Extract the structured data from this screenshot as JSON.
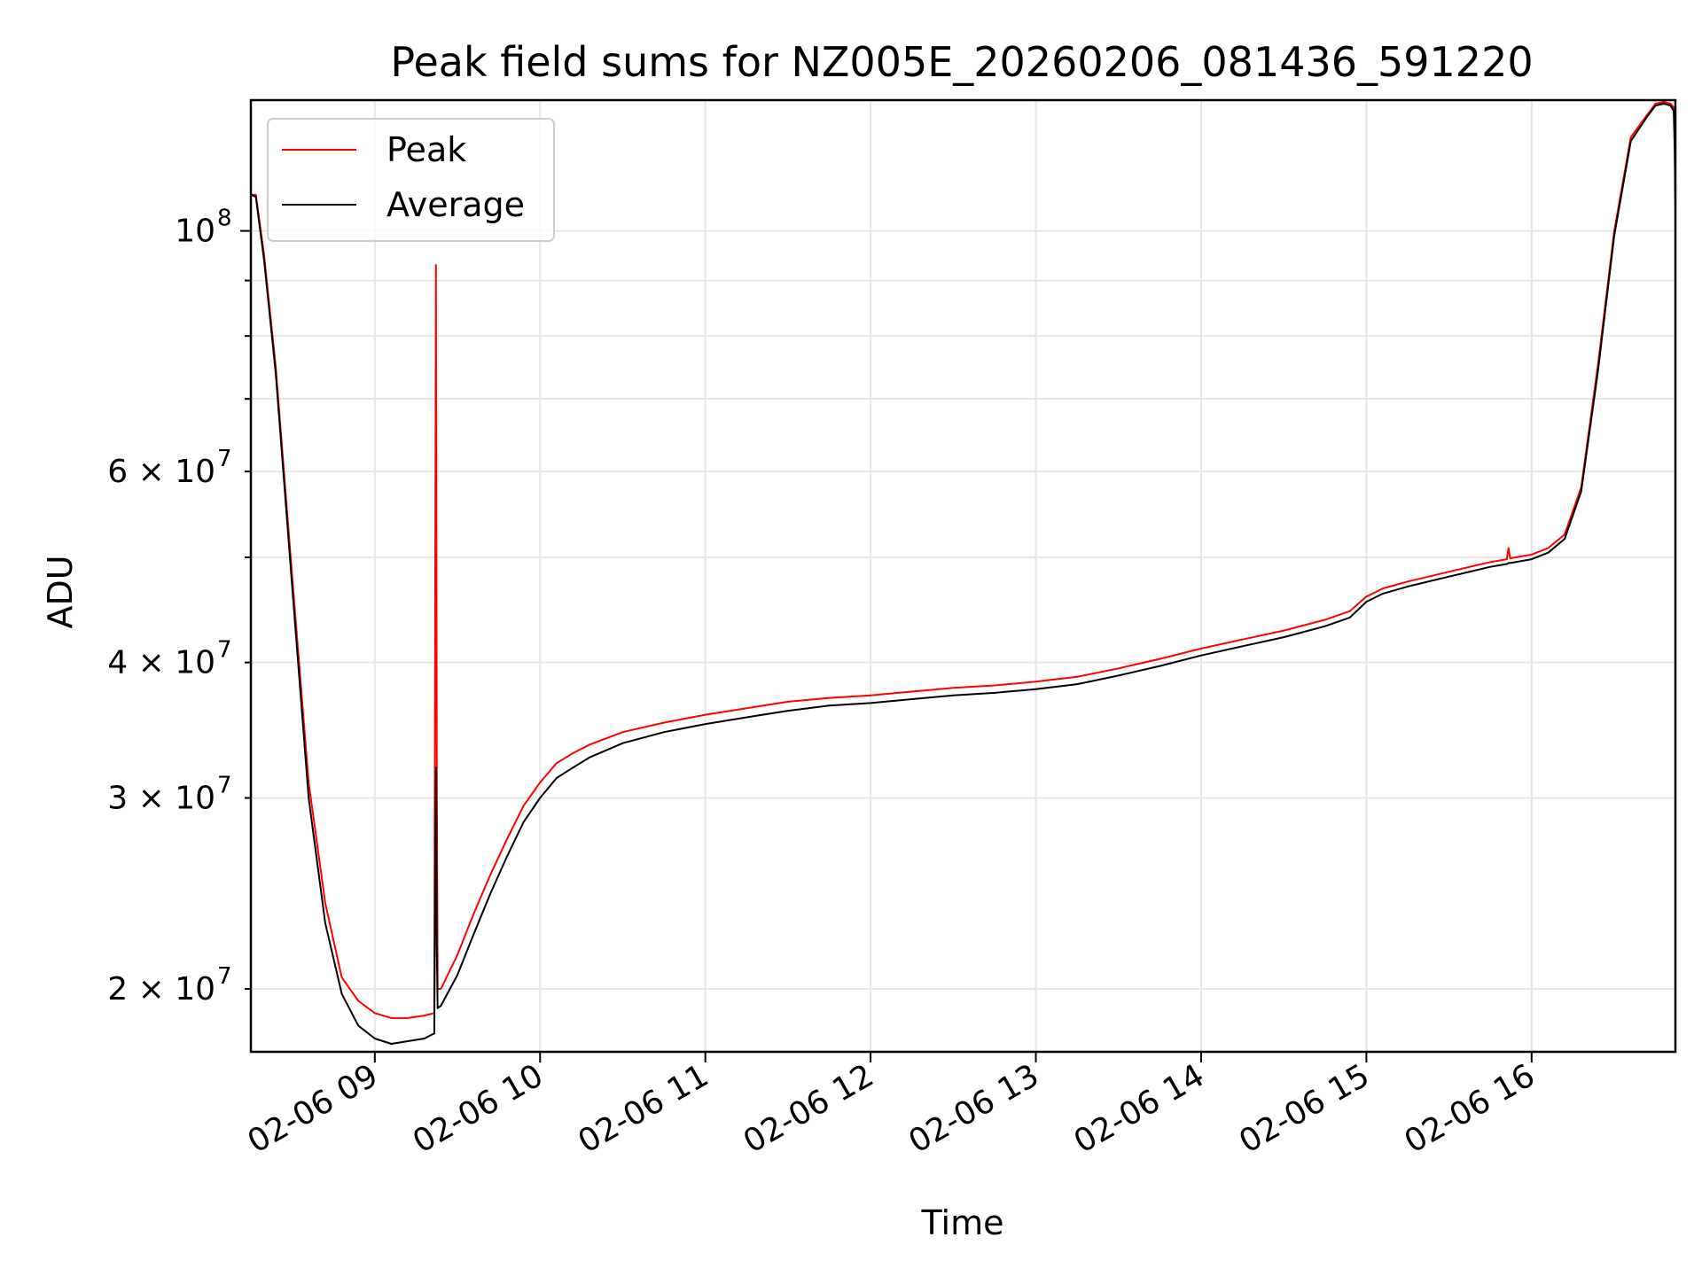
{
  "chart_data": {
    "type": "line",
    "title": "Peak field sums for NZ005E_20260206_081436_591220",
    "xlabel": "Time",
    "ylabel": "ADU",
    "yscale": "log",
    "grid": true,
    "legend_position": "top-left",
    "x_unit": "hour of day (2026-02-06)",
    "xlim": [
      8.25,
      16.87
    ],
    "ylim": [
      17500000,
      132000000
    ],
    "x_ticks": [
      {
        "value": 9,
        "label": "02-06 09"
      },
      {
        "value": 10,
        "label": "02-06 10"
      },
      {
        "value": 11,
        "label": "02-06 11"
      },
      {
        "value": 12,
        "label": "02-06 12"
      },
      {
        "value": 13,
        "label": "02-06 13"
      },
      {
        "value": 14,
        "label": "02-06 14"
      },
      {
        "value": 15,
        "label": "02-06 15"
      },
      {
        "value": 16,
        "label": "02-06 16"
      }
    ],
    "y_ticks_major": [
      {
        "value": 100000000,
        "mant": "",
        "base": "10",
        "exp": "8"
      }
    ],
    "y_ticks_minor_labeled": [
      {
        "value": 20000000,
        "mant": "2 × ",
        "base": "10",
        "exp": "7"
      },
      {
        "value": 30000000,
        "mant": "3 × ",
        "base": "10",
        "exp": "7"
      },
      {
        "value": 40000000,
        "mant": "4 × ",
        "base": "10",
        "exp": "7"
      },
      {
        "value": 60000000,
        "mant": "6 × ",
        "base": "10",
        "exp": "7"
      }
    ],
    "y_ticks_minor_unlabeled": [
      50000000,
      70000000,
      80000000,
      90000000
    ],
    "series": [
      {
        "name": "Peak",
        "color": "#ff0000",
        "x": [
          8.25,
          8.28,
          8.33,
          8.4,
          8.5,
          8.6,
          8.7,
          8.8,
          8.9,
          9.0,
          9.1,
          9.2,
          9.3,
          9.36,
          9.37,
          9.375,
          9.38,
          9.4,
          9.5,
          9.6,
          9.7,
          9.8,
          9.9,
          10.0,
          10.1,
          10.2,
          10.3,
          10.5,
          10.75,
          11.0,
          11.25,
          11.5,
          11.75,
          12.0,
          12.25,
          12.5,
          12.75,
          13.0,
          13.25,
          13.5,
          13.75,
          14.0,
          14.25,
          14.5,
          14.75,
          14.9,
          15.0,
          15.1,
          15.25,
          15.5,
          15.75,
          15.85,
          15.86,
          15.87,
          16.0,
          16.1,
          16.2,
          16.3,
          16.4,
          16.5,
          16.6,
          16.7,
          16.75,
          16.8,
          16.84,
          16.86,
          16.865,
          16.87
        ],
        "values": [
          108000000,
          108000000,
          95000000,
          75000000,
          48000000,
          31000000,
          24000000,
          20500000,
          19500000,
          19000000,
          18800000,
          18800000,
          18900000,
          19000000,
          93000000,
          33000000,
          20000000,
          20000000,
          21500000,
          23500000,
          25500000,
          27500000,
          29500000,
          31000000,
          32300000,
          33000000,
          33600000,
          34500000,
          35200000,
          35800000,
          36300000,
          36800000,
          37100000,
          37300000,
          37600000,
          37900000,
          38100000,
          38400000,
          38800000,
          39500000,
          40300000,
          41200000,
          42000000,
          42800000,
          43800000,
          44600000,
          46000000,
          46800000,
          47500000,
          48500000,
          49500000,
          49800000,
          51000000,
          49900000,
          50300000,
          51000000,
          52500000,
          58000000,
          75000000,
          100000000,
          122000000,
          128000000,
          131000000,
          131500000,
          131000000,
          130000000,
          125000000,
          107000000
        ]
      },
      {
        "name": "Average",
        "color": "#000000",
        "x": [
          8.25,
          8.28,
          8.33,
          8.4,
          8.5,
          8.6,
          8.7,
          8.8,
          8.9,
          9.0,
          9.1,
          9.2,
          9.3,
          9.36,
          9.37,
          9.375,
          9.38,
          9.4,
          9.5,
          9.6,
          9.7,
          9.8,
          9.9,
          10.0,
          10.1,
          10.2,
          10.3,
          10.5,
          10.75,
          11.0,
          11.25,
          11.5,
          11.75,
          12.0,
          12.25,
          12.5,
          12.75,
          13.0,
          13.25,
          13.5,
          13.75,
          14.0,
          14.25,
          14.5,
          14.75,
          14.9,
          15.0,
          15.1,
          15.25,
          15.5,
          15.75,
          15.85,
          15.86,
          15.87,
          16.0,
          16.1,
          16.2,
          16.3,
          16.4,
          16.5,
          16.6,
          16.7,
          16.75,
          16.8,
          16.84,
          16.86,
          16.865,
          16.87
        ],
        "values": [
          108000000,
          107500000,
          94000000,
          74000000,
          47000000,
          30000000,
          23000000,
          19800000,
          18500000,
          18000000,
          17800000,
          17900000,
          18000000,
          18200000,
          32000000,
          22000000,
          19200000,
          19300000,
          20600000,
          22500000,
          24500000,
          26500000,
          28500000,
          30000000,
          31300000,
          32000000,
          32700000,
          33700000,
          34500000,
          35100000,
          35600000,
          36100000,
          36500000,
          36700000,
          37000000,
          37300000,
          37500000,
          37800000,
          38200000,
          38900000,
          39700000,
          40600000,
          41400000,
          42200000,
          43200000,
          44000000,
          45500000,
          46300000,
          47000000,
          48000000,
          49000000,
          49300000,
          49400000,
          49400000,
          49800000,
          50500000,
          52000000,
          57500000,
          74000000,
          99000000,
          121000000,
          127500000,
          130500000,
          131000000,
          130500000,
          129000000,
          120000000,
          104000000
        ]
      }
    ]
  }
}
